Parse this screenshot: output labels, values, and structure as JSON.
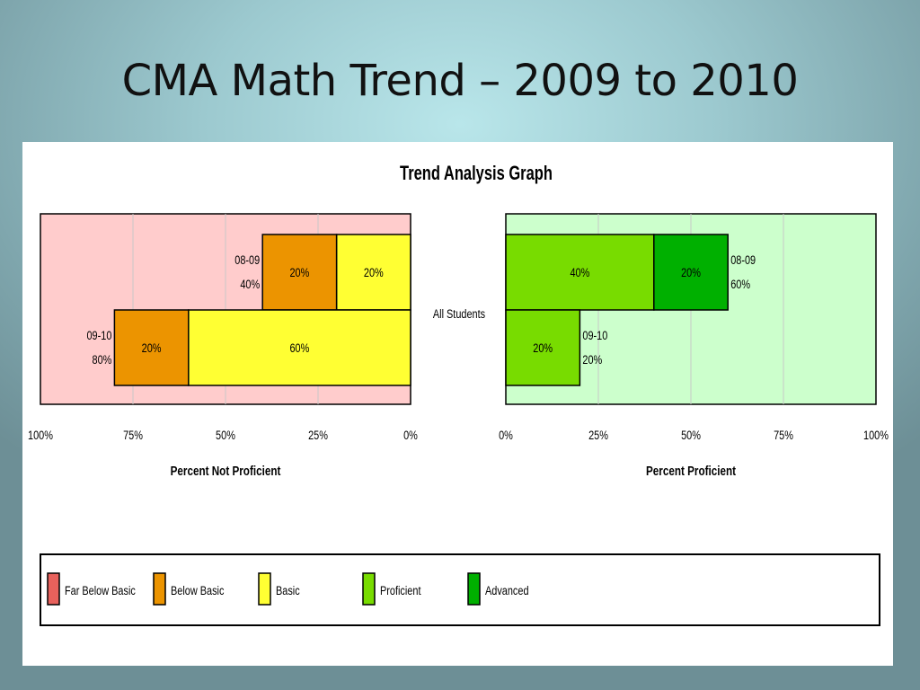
{
  "slide": {
    "title": "CMA Math Trend – 2009 to 2010"
  },
  "chart_data": {
    "type": "bar",
    "title": "Trend Analysis Graph",
    "group_label": "All Students",
    "left_panel": {
      "xlabel": "Percent Not Proficient",
      "ticks": [
        "100%",
        "75%",
        "50%",
        "25%",
        "0%"
      ],
      "xlim": [
        100,
        0
      ],
      "rows": [
        {
          "year": "08-09",
          "total": "40%",
          "segments": [
            {
              "series": "Basic",
              "value": 20,
              "label": "20%"
            },
            {
              "series": "Below Basic",
              "value": 20,
              "label": "20%"
            }
          ]
        },
        {
          "year": "09-10",
          "total": "80%",
          "segments": [
            {
              "series": "Basic",
              "value": 60,
              "label": "60%"
            },
            {
              "series": "Below Basic",
              "value": 20,
              "label": "20%"
            }
          ]
        }
      ]
    },
    "right_panel": {
      "xlabel": "Percent Proficient",
      "ticks": [
        "0%",
        "25%",
        "50%",
        "75%",
        "100%"
      ],
      "xlim": [
        0,
        100
      ],
      "rows": [
        {
          "year": "08-09",
          "total": "60%",
          "segments": [
            {
              "series": "Proficient",
              "value": 40,
              "label": "40%"
            },
            {
              "series": "Advanced",
              "value": 20,
              "label": "20%"
            }
          ]
        },
        {
          "year": "09-10",
          "total": "20%",
          "segments": [
            {
              "series": "Proficient",
              "value": 20,
              "label": "20%"
            }
          ]
        }
      ]
    },
    "legend": [
      {
        "name": "Far Below Basic",
        "color": "#e8615c"
      },
      {
        "name": "Below Basic",
        "color": "#ec9400"
      },
      {
        "name": "Basic",
        "color": "#ffff33"
      },
      {
        "name": "Proficient",
        "color": "#78dc00"
      },
      {
        "name": "Advanced",
        "color": "#00b000"
      }
    ],
    "colors": {
      "left_bg": "#ffcccc",
      "right_bg": "#ccffcc",
      "grid": "#c8c8c8"
    },
    "grid": true
  }
}
